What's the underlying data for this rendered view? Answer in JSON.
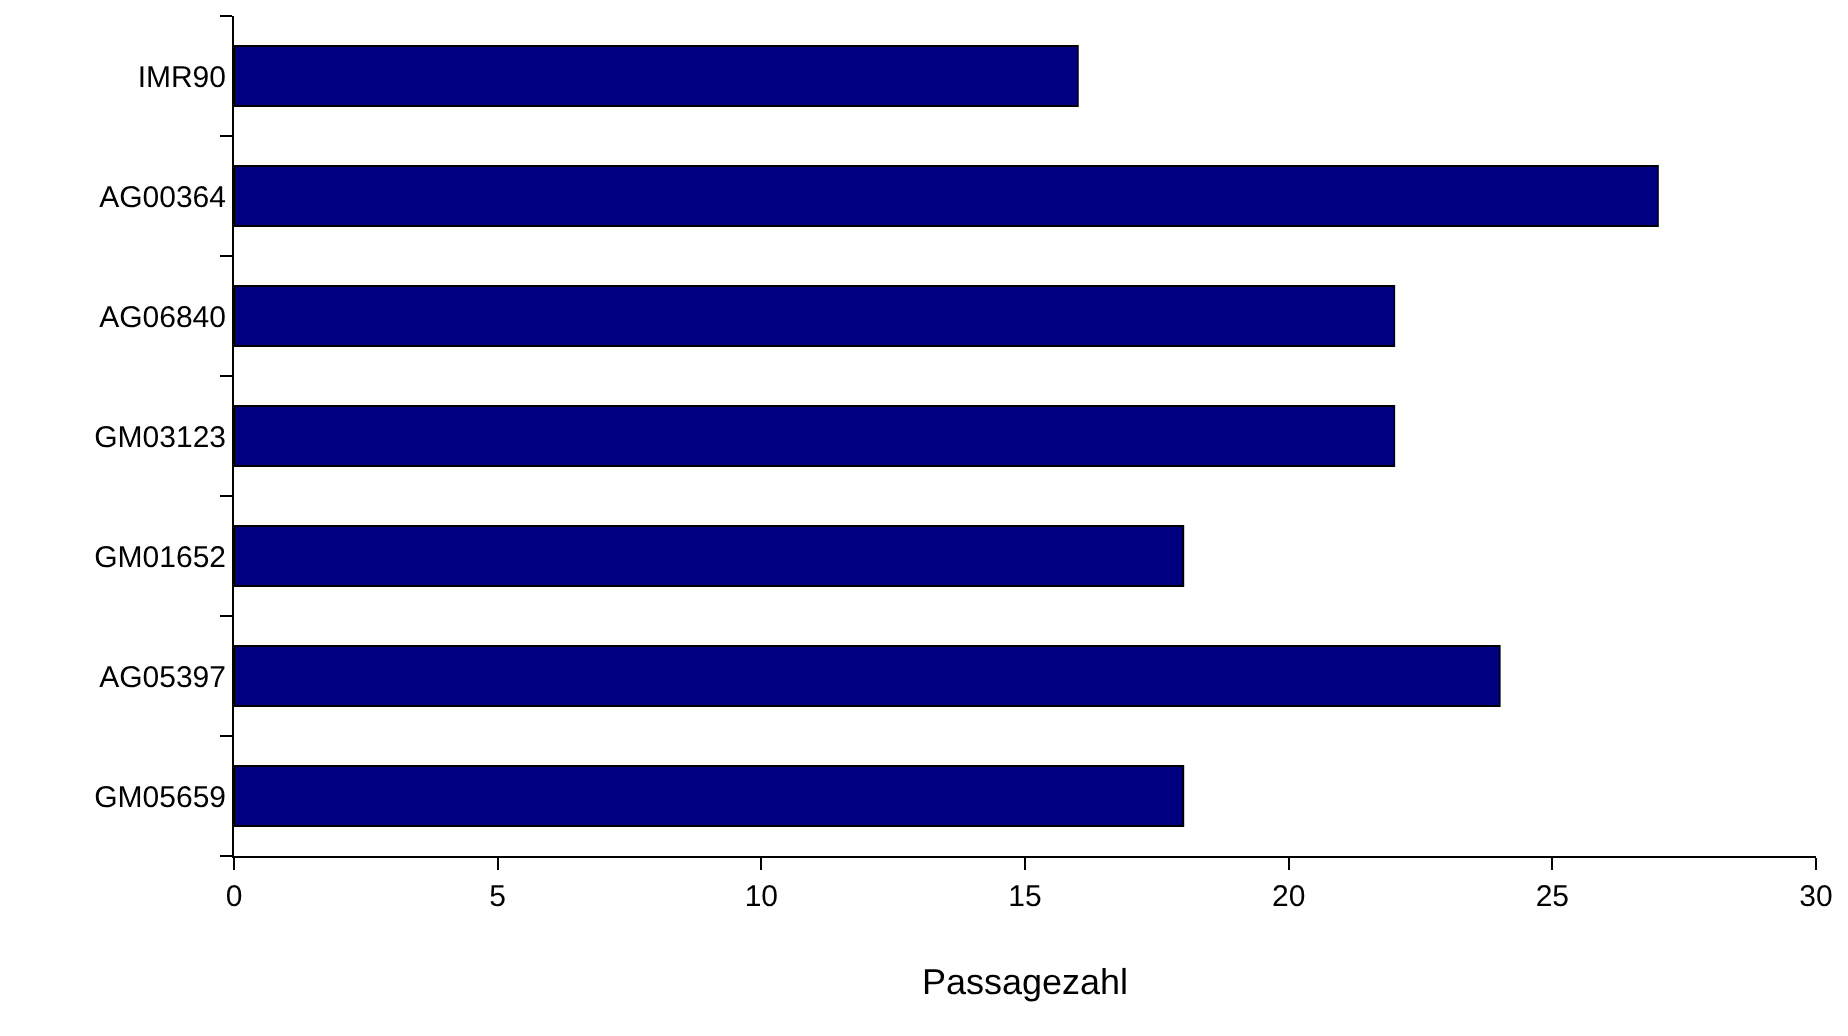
{
  "chart_data": {
    "type": "bar",
    "orientation": "horizontal",
    "xlabel": "Passagezahl",
    "categories": [
      "IMR90",
      "AG00364",
      "AG06840",
      "GM03123",
      "GM01652",
      "AG05397",
      "GM05659"
    ],
    "values": [
      16,
      27,
      22,
      22,
      18,
      24,
      18
    ],
    "color": "#000080",
    "xlim": [
      0,
      30
    ],
    "xticks": [
      0,
      5,
      10,
      15,
      20,
      25,
      30
    ]
  }
}
